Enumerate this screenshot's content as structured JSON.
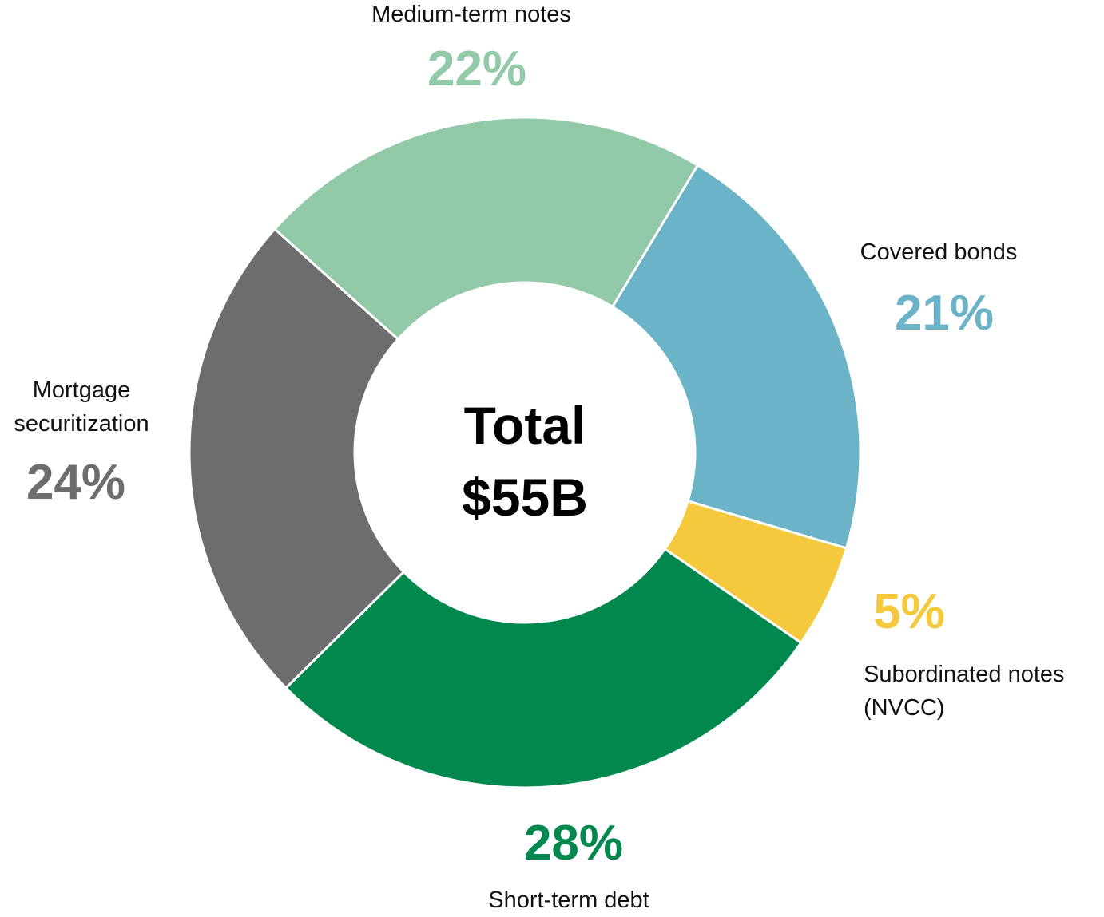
{
  "chart_data": {
    "type": "donut",
    "categories": [
      "Covered bonds",
      "Subordinated notes (NVCC)",
      "Short-term debt",
      "Mortgage securitization",
      "Medium-term notes"
    ],
    "values": [
      21,
      5,
      28,
      24,
      22
    ],
    "value_labels": [
      "21%",
      "5%",
      "28%",
      "24%",
      "22%"
    ],
    "colors": [
      "#6bb3c6",
      "#f5c93e",
      "#00884e",
      "#6d6d6d",
      "#92c9a8"
    ],
    "center_text": [
      "Total",
      "$55B"
    ]
  }
}
